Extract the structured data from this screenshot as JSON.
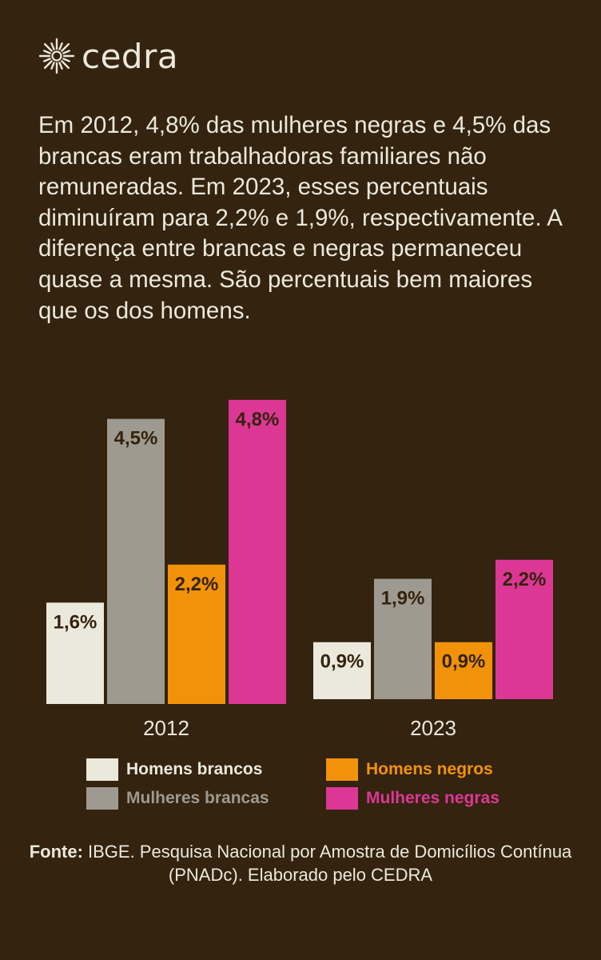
{
  "brand": {
    "name": "cedra",
    "logo_icon": "sun-burst-icon"
  },
  "intro_text": "Em 2012, 4,8% das mulheres negras e 4,5% das brancas eram trabalhadoras familiares não remuneradas. Em 2023, esses percentuais diminuíram para 2,2% e 1,9%, respectivamente. A diferença entre brancas e negras permaneceu quase a mesma. São percentuais bem maiores que os dos homens.",
  "chart_data": {
    "type": "bar",
    "categories": [
      "2012",
      "2023"
    ],
    "series": [
      {
        "name": "Homens brancos",
        "color": "#ebe9dc",
        "values": [
          1.6,
          0.9
        ],
        "labels": [
          "1,6%",
          "0,9%"
        ]
      },
      {
        "name": "Mulheres brancas",
        "color": "#9e9a8f",
        "values": [
          4.5,
          1.9
        ],
        "labels": [
          "4,5%",
          "1,9%"
        ]
      },
      {
        "name": "Homens negros",
        "color": "#f2920a",
        "values": [
          2.2,
          0.9
        ],
        "labels": [
          "2,2%",
          "0,9%"
        ]
      },
      {
        "name": "Mulheres negras",
        "color": "#dd3795",
        "values": [
          4.8,
          2.2
        ],
        "labels": [
          "4,8%",
          "2,2%"
        ]
      }
    ],
    "legend_position": "bottom",
    "grid": false
  },
  "source": {
    "label": "Fonte:",
    "text": " IBGE. Pesquisa Nacional por Amostra de Domicílios Contínua (PNADc). Elaborado pelo CEDRA"
  }
}
